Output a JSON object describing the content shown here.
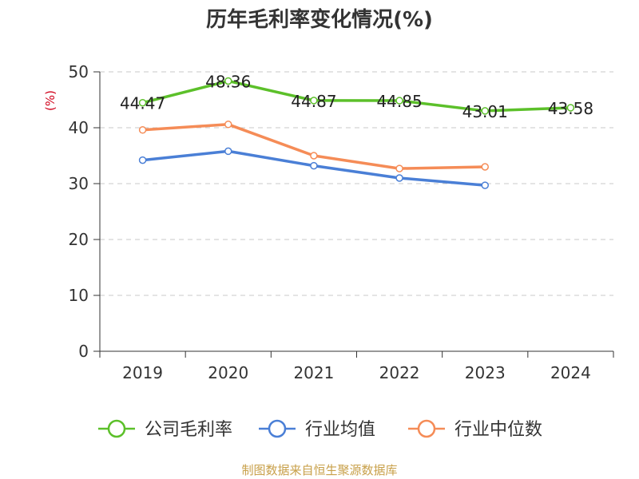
{
  "chart_data": {
    "type": "line",
    "title": "历年毛利率变化情况(%)",
    "ylabel": "(%)",
    "xlabel": "",
    "categories": [
      "2019",
      "2020",
      "2021",
      "2022",
      "2023",
      "2024"
    ],
    "ylim": [
      0,
      50
    ],
    "yticks": [
      0,
      10,
      20,
      30,
      40,
      50
    ],
    "grid": true,
    "legend_position": "bottom",
    "series": [
      {
        "name": "公司毛利率",
        "color": "#5cc02a",
        "values": [
          44.47,
          48.36,
          44.87,
          44.85,
          43.01,
          43.58
        ],
        "labels": [
          "44.47",
          "48.36",
          "44.87",
          "44.85",
          "43.01",
          "43.58"
        ]
      },
      {
        "name": "行业均值",
        "color": "#4a7fd6",
        "values": [
          34.2,
          35.8,
          33.2,
          31.0,
          29.7,
          null
        ]
      },
      {
        "name": "行业中位数",
        "color": "#f58c57",
        "values": [
          39.6,
          40.6,
          35.0,
          32.7,
          33.0,
          null
        ]
      }
    ]
  },
  "footer": {
    "source": "制图数据来自恒生聚源数据库"
  }
}
